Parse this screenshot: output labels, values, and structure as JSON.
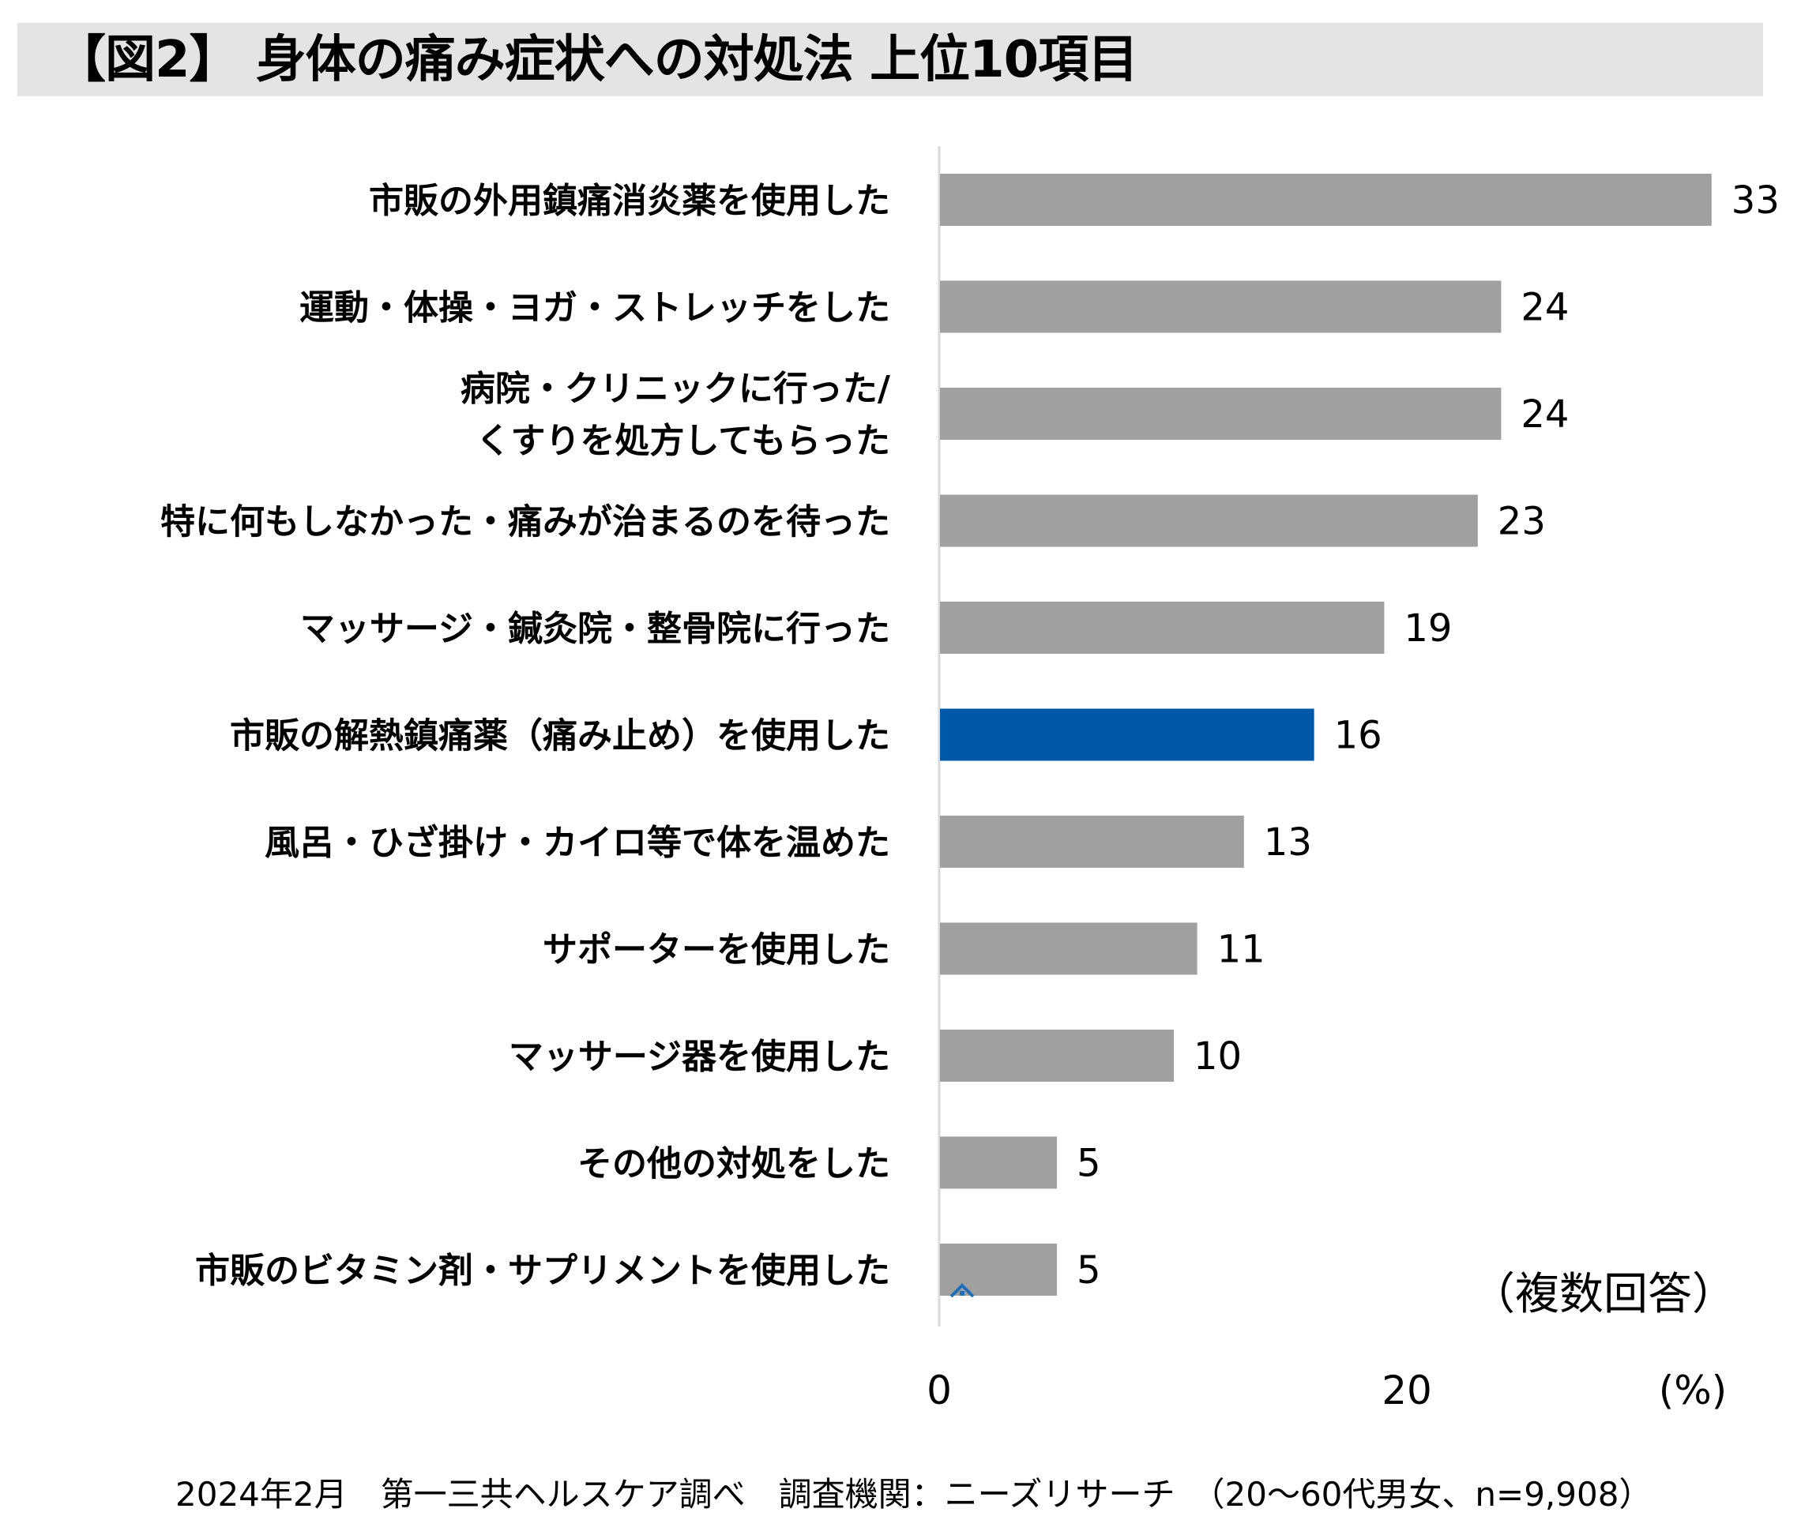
{
  "title": "【図2】 身体の痛み症状への対処法 上位10項目",
  "note_multiple": "（複数回答）",
  "footer": "2024年2月　第一三共ヘルスケア調べ　調査機関：ニーズリサーチ　（20～60代男女、n=9,908）",
  "colors": {
    "bar": "#a0a0a0",
    "highlight": "#0058a8",
    "title_band": "#e4e4e4",
    "axis": "#d9d9d9",
    "icon": "#1f6fb8"
  },
  "icon": "caret-up-icon",
  "chart_data": {
    "type": "bar",
    "orientation": "horizontal",
    "title": "【図2】 身体の痛み症状への対処法 上位10項目",
    "xlabel": "(%)",
    "ylabel": "",
    "xlim": [
      0,
      33
    ],
    "x_ticks": [
      "0",
      "20"
    ],
    "grid": false,
    "categories": [
      [
        "市販の外用鎮痛消炎薬を使用した"
      ],
      [
        "運動・体操・ヨガ・ストレッチをした"
      ],
      [
        "病院・クリニックに行った/",
        "くすりを処方してもらった"
      ],
      [
        "特に何もしなかった・痛みが治まるのを待った"
      ],
      [
        "マッサージ・鍼灸院・整骨院に行った"
      ],
      [
        "市販の解熱鎮痛薬（痛み止め）を使用した"
      ],
      [
        "風呂・ひざ掛け・カイロ等で体を温めた"
      ],
      [
        "サポーターを使用した"
      ],
      [
        "マッサージ器を使用した"
      ],
      [
        "その他の対処をした"
      ],
      [
        "市販のビタミン剤・サプリメントを使用した"
      ]
    ],
    "values": [
      33,
      24,
      24,
      23,
      19,
      16,
      13,
      11,
      10,
      5,
      5
    ],
    "highlight_index": 5
  }
}
